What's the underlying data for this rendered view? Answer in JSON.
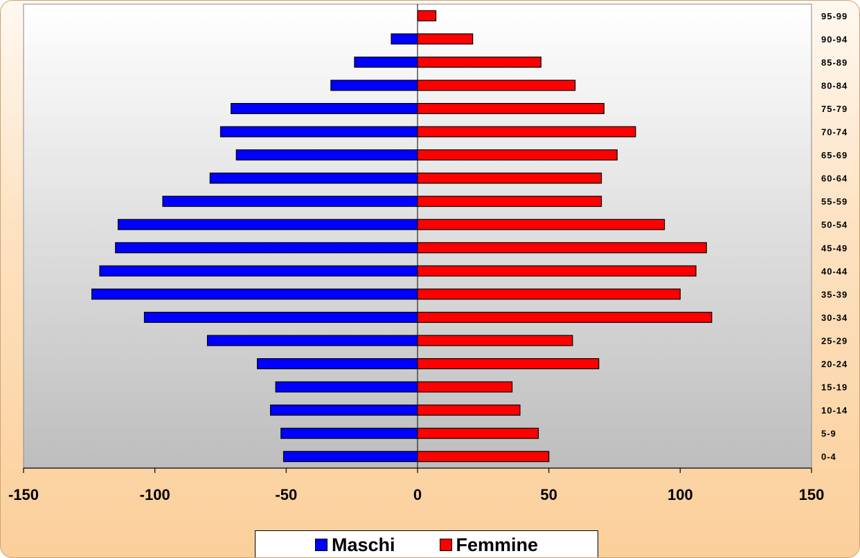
{
  "chart_data": {
    "type": "bar",
    "orientation": "horizontal",
    "stacked": true,
    "categories": [
      "0-4",
      "5-9",
      "10-14",
      "15-19",
      "20-24",
      "25-29",
      "30-34",
      "35-39",
      "40-44",
      "45-49",
      "50-54",
      "55-59",
      "60-64",
      "65-69",
      "70-74",
      "75-79",
      "80-84",
      "85-89",
      "90-94",
      "95-99"
    ],
    "series": [
      {
        "name": "Maschi",
        "color": "#0000FF",
        "values": [
          -51,
          -52,
          -56,
          -54,
          -61,
          -80,
          -104,
          -124,
          -121,
          -115,
          -114,
          -97,
          -79,
          -69,
          -75,
          -71,
          -33,
          -24,
          -10,
          0
        ]
      },
      {
        "name": "Femmine",
        "color": "#FF0000",
        "values": [
          50,
          46,
          39,
          36,
          69,
          59,
          112,
          100,
          106,
          110,
          94,
          70,
          70,
          76,
          83,
          71,
          60,
          47,
          21,
          7
        ]
      }
    ],
    "xlim": [
      -150,
      150
    ],
    "xticks": [
      -150,
      -100,
      -50,
      0,
      50,
      100,
      150
    ],
    "xtick_labels": [
      "-150",
      "-100",
      "-50",
      "0",
      "50",
      "100",
      "150"
    ],
    "grid": false,
    "legend": "bottom",
    "title": "",
    "xlabel": "",
    "ylabel": ""
  }
}
